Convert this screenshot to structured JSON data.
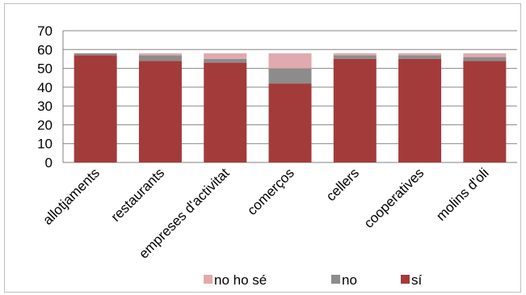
{
  "chart_data": {
    "type": "bar",
    "stacked": true,
    "categories": [
      "allotjaments",
      "restaurants",
      "empreses d'activitat",
      "comerços",
      "cellers",
      "cooperatives",
      "molins d'oli"
    ],
    "series": [
      {
        "name": "sí",
        "color": "#a33b3b",
        "values": [
          57,
          54,
          53,
          42,
          55,
          55,
          54
        ]
      },
      {
        "name": "no",
        "color": "#8c8c8c",
        "values": [
          1,
          3,
          2,
          8,
          2,
          2,
          2
        ]
      },
      {
        "name": "no ho sé",
        "color": "#e0aaae",
        "values": [
          0,
          1,
          3,
          8,
          1,
          1,
          2
        ]
      }
    ],
    "ylim": [
      0,
      70
    ],
    "yticks": [
      0,
      10,
      20,
      30,
      40,
      50,
      60,
      70
    ],
    "grid": true,
    "legend": "bottom",
    "legend_order": [
      "no ho sé",
      "no",
      "sí"
    ]
  }
}
